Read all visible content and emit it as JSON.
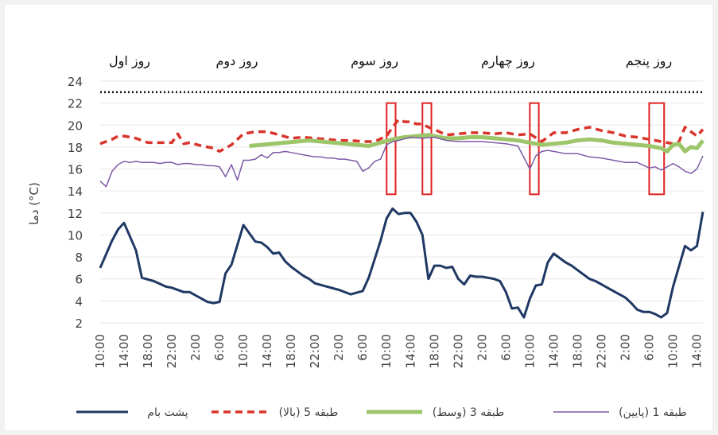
{
  "chart_data": {
    "type": "line",
    "ylabel": "دما (°C)",
    "ylim": [
      2,
      24
    ],
    "yticks": [
      2,
      4,
      6,
      8,
      10,
      12,
      14,
      16,
      18,
      20,
      22,
      24
    ],
    "xtick_labels": [
      "10:00",
      "14:00",
      "18:00",
      "22:00",
      "2:00",
      "6:00",
      "10:00",
      "14:00",
      "18:00",
      "22:00",
      "2:00",
      "6:00",
      "10:00",
      "14:00",
      "18:00",
      "22:00",
      "2:00",
      "6:00",
      "10:00",
      "14:00",
      "18:00",
      "22:00",
      "2:00",
      "6:00",
      "10:00",
      "14:00"
    ],
    "day_labels": [
      "روز اول",
      "روز دوم",
      "روز سوم",
      "روز چهارم",
      "روز پنجم"
    ],
    "reference_line": 23,
    "highlight_boxes_hours": [
      [
        96,
        99
      ],
      [
        108,
        111
      ],
      [
        144,
        147
      ],
      [
        184,
        189
      ]
    ],
    "highlight_y_range": [
      13.7,
      22
    ],
    "series": [
      {
        "name": "پشت بام",
        "color": "#1f3864",
        "style": "solid",
        "x": [
          0,
          4,
          6,
          8,
          12,
          14,
          18,
          22,
          24,
          28,
          30,
          32,
          34,
          36,
          38,
          40,
          42,
          44,
          48,
          52,
          54,
          56,
          58,
          60,
          62,
          64,
          68,
          70,
          72,
          76,
          80,
          84,
          88,
          90,
          92,
          94,
          96,
          98,
          100,
          102,
          104,
          106,
          108,
          110,
          112,
          114,
          116,
          118,
          120,
          122,
          124,
          126,
          128,
          130,
          132,
          134,
          136,
          138,
          140,
          142,
          144,
          146,
          148,
          150,
          152,
          154,
          156,
          158,
          160,
          162,
          164,
          166,
          168,
          170,
          172,
          174,
          176,
          178,
          180,
          182,
          184,
          186,
          188,
          190,
          192,
          196,
          198,
          200,
          202
        ],
        "y": [
          7,
          9.5,
          10.5,
          11.1,
          8.6,
          6.1,
          5.8,
          5.3,
          5.2,
          4.8,
          4.8,
          4.5,
          4.2,
          3.9,
          3.8,
          3.9,
          6.5,
          7.3,
          10.9,
          9.4,
          9.3,
          8.9,
          8.3,
          8.4,
          7.6,
          7.1,
          6.3,
          6.0,
          5.6,
          5.3,
          5.0,
          4.6,
          4.9,
          6.1,
          7.8,
          9.5,
          11.5,
          12.4,
          11.9,
          12.0,
          12.0,
          11.2,
          10.0,
          6.0,
          7.2,
          7.2,
          7.0,
          7.1,
          6.0,
          5.5,
          6.3,
          6.2,
          6.2,
          6.1,
          6.0,
          5.8,
          4.8,
          3.3,
          3.4,
          2.5,
          4.2,
          5.4,
          5.5,
          7.5,
          8.3,
          7.9,
          7.5,
          7.2,
          6.8,
          6.4,
          6.0,
          5.8,
          5.5,
          5.2,
          4.9,
          4.6,
          4.3,
          3.8,
          3.2,
          3.0,
          3.0,
          2.8,
          2.5,
          2.9,
          5.3,
          9.0,
          8.6,
          9.0,
          12.1
        ]
      },
      {
        "name": "طبقه 5 (بالا)",
        "color": "#d9342b",
        "style": "dashed",
        "x": [
          0,
          4,
          6,
          8,
          12,
          16,
          20,
          24,
          26,
          28,
          30,
          34,
          38,
          40,
          44,
          48,
          52,
          56,
          60,
          64,
          68,
          72,
          76,
          80,
          84,
          88,
          92,
          96,
          98,
          100,
          102,
          104,
          106,
          108,
          110,
          112,
          116,
          120,
          124,
          128,
          132,
          136,
          140,
          144,
          148,
          152,
          156,
          160,
          164,
          168,
          172,
          176,
          180,
          184,
          188,
          190,
          192,
          194,
          196,
          200,
          202
        ],
        "y": [
          18.3,
          18.7,
          19.0,
          19.0,
          18.8,
          18.4,
          18.4,
          18.4,
          19.2,
          18.3,
          18.4,
          18.1,
          17.9,
          17.6,
          18.2,
          19.2,
          19.4,
          19.4,
          19.1,
          18.8,
          18.9,
          18.8,
          18.7,
          18.6,
          18.6,
          18.5,
          18.5,
          19.0,
          19.8,
          20.5,
          20.3,
          20.3,
          20.1,
          20.1,
          19.8,
          19.6,
          19.1,
          19.2,
          19.3,
          19.3,
          19.2,
          19.3,
          19.1,
          19.2,
          18.5,
          19.3,
          19.3,
          19.6,
          19.8,
          19.5,
          19.3,
          19.0,
          18.9,
          18.7,
          18.5,
          18.4,
          18.3,
          18.5,
          19.8,
          19.0,
          19.6
        ]
      },
      {
        "name": "طبقه 3 (وسط)",
        "color": "#9dc56a",
        "style": "solid",
        "x": [
          50,
          54,
          58,
          62,
          66,
          70,
          74,
          78,
          82,
          86,
          90,
          94,
          98,
          102,
          106,
          110,
          112,
          116,
          120,
          124,
          128,
          132,
          136,
          140,
          144,
          148,
          152,
          156,
          160,
          164,
          168,
          172,
          176,
          180,
          184,
          188,
          190,
          192,
          194,
          196,
          198,
          200,
          202
        ],
        "y": [
          18.1,
          18.2,
          18.3,
          18.4,
          18.5,
          18.6,
          18.5,
          18.4,
          18.3,
          18.2,
          18.1,
          18.4,
          18.7,
          18.9,
          19.0,
          19.1,
          19.0,
          18.8,
          18.8,
          18.9,
          18.9,
          18.8,
          18.7,
          18.6,
          18.4,
          18.2,
          18.3,
          18.4,
          18.6,
          18.7,
          18.6,
          18.4,
          18.3,
          18.2,
          18.1,
          17.9,
          17.6,
          18.2,
          18.3,
          17.6,
          18.0,
          17.9,
          18.6
        ]
      },
      {
        "name": "طبقه 1 (پایین)",
        "color": "#7d5aa6",
        "style": "solid",
        "x": [
          0,
          2,
          4,
          6,
          8,
          10,
          12,
          14,
          16,
          18,
          20,
          22,
          24,
          26,
          28,
          30,
          32,
          34,
          36,
          38,
          40,
          42,
          44,
          46,
          48,
          50,
          52,
          54,
          56,
          58,
          60,
          62,
          64,
          66,
          68,
          70,
          72,
          74,
          76,
          78,
          80,
          82,
          84,
          86,
          88,
          90,
          92,
          94,
          96,
          98,
          100,
          104,
          108,
          112,
          116,
          120,
          124,
          128,
          132,
          136,
          140,
          144,
          146,
          148,
          150,
          152,
          156,
          160,
          164,
          168,
          172,
          176,
          180,
          184,
          186,
          188,
          190,
          192,
          194,
          196,
          198,
          200,
          202
        ],
        "y": [
          14.9,
          14.4,
          15.8,
          16.4,
          16.7,
          16.6,
          16.7,
          16.6,
          16.6,
          16.6,
          16.5,
          16.6,
          16.6,
          16.4,
          16.5,
          16.5,
          16.4,
          16.4,
          16.3,
          16.3,
          16.2,
          15.3,
          16.4,
          15.0,
          16.8,
          16.8,
          16.9,
          17.3,
          17.0,
          17.5,
          17.5,
          17.6,
          17.5,
          17.4,
          17.3,
          17.2,
          17.1,
          17.1,
          17.0,
          17.0,
          16.9,
          16.9,
          16.8,
          16.7,
          15.8,
          16.1,
          16.7,
          16.9,
          18.2,
          18.5,
          18.6,
          18.9,
          18.8,
          18.9,
          18.6,
          18.5,
          18.5,
          18.5,
          18.4,
          18.3,
          18.1,
          16.0,
          17.2,
          17.6,
          17.7,
          17.6,
          17.4,
          17.4,
          17.1,
          17.0,
          16.8,
          16.6,
          16.6,
          16.1,
          16.2,
          15.9,
          16.2,
          16.5,
          16.2,
          15.8,
          15.6,
          16.0,
          17.2
        ]
      }
    ]
  }
}
